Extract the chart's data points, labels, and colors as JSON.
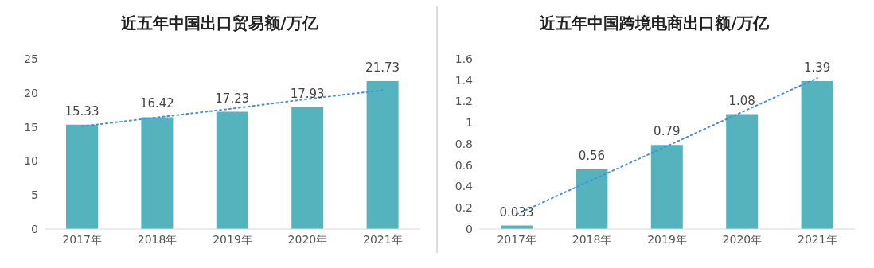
{
  "chart_data": [
    {
      "type": "bar",
      "title": "近五年中国出口贸易额/万亿",
      "categories": [
        "2017年",
        "2018年",
        "2019年",
        "2020年",
        "2021年"
      ],
      "ylim": [
        0,
        25
      ],
      "yticks": [
        0,
        5,
        10,
        15,
        20,
        25
      ],
      "grid": false,
      "legend": false,
      "series": [
        {
          "color": "#55b3bd",
          "values": [
            15.33,
            16.42,
            17.23,
            17.93,
            21.73
          ],
          "value_labels": [
            "15.33",
            "16.42",
            "17.23",
            "17.93",
            "21.73"
          ]
        },
        {
          "type": "line",
          "color": "#4a8fd6",
          "values": [
            15.1,
            16.4,
            17.7,
            19.1,
            20.4
          ],
          "marker": "none",
          "line_style": "dotted"
        }
      ]
    },
    {
      "type": "bar",
      "title": "近五年中国跨境电商出口额/万亿",
      "categories": [
        "2017年",
        "2018年",
        "2019年",
        "2020年",
        "2021年"
      ],
      "ylim": [
        0,
        1.6
      ],
      "yticks": [
        0,
        0.2,
        0.4,
        0.6,
        0.8,
        1,
        1.2,
        1.4,
        1.6
      ],
      "grid": false,
      "legend": false,
      "series": [
        {
          "color": "#55b3bd",
          "values": [
            0.033,
            0.56,
            0.79,
            1.08,
            1.39
          ],
          "value_labels": [
            "0.033",
            "0.56",
            "0.79",
            "1.08",
            "1.39"
          ]
        },
        {
          "type": "line",
          "color": "#4a8fd6",
          "values": [
            0.14,
            0.46,
            0.78,
            1.1,
            1.42
          ],
          "marker": "none",
          "line_style": "dotted"
        }
      ]
    }
  ]
}
